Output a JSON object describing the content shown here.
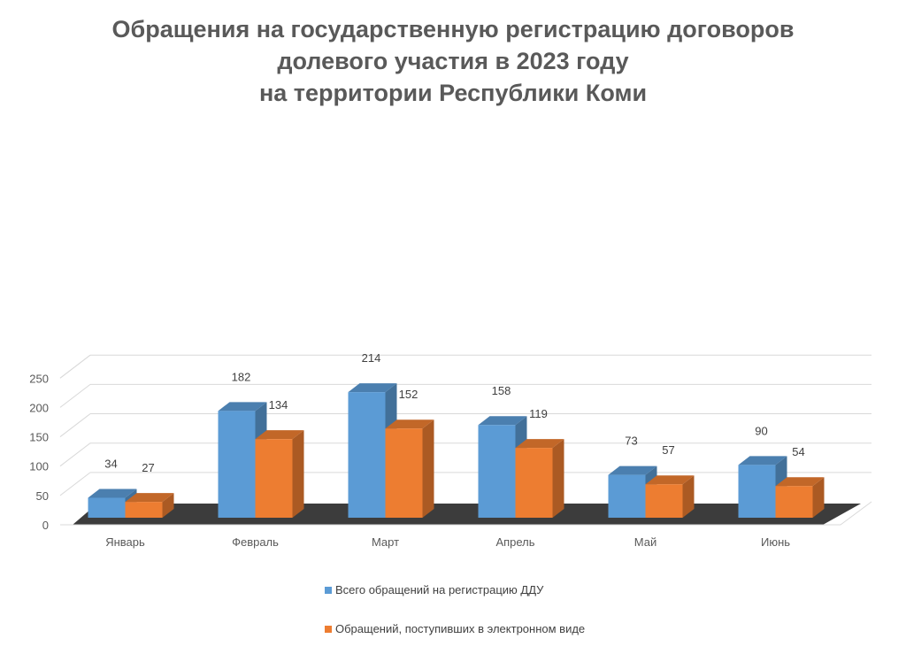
{
  "chart_data": {
    "type": "bar",
    "title_lines": [
      "Обращения на государственную регистрацию договоров",
      "долевого участия в 2023 году",
      "на территории Республики Коми"
    ],
    "categories": [
      "Январь",
      "Февраль",
      "Март",
      "Апрель",
      "Май",
      "Июнь"
    ],
    "series": [
      {
        "name": "Всего обращений на регистрацию ДДУ",
        "values": [
          34,
          182,
          214,
          158,
          73,
          90
        ],
        "color": "#5B9BD5"
      },
      {
        "name": "Обращений, поступивших в электронном виде",
        "values": [
          27,
          134,
          152,
          119,
          57,
          54
        ],
        "color": "#ED7D31"
      }
    ],
    "y_ticks": [
      "0",
      "50",
      "100",
      "150",
      "200",
      "250"
    ],
    "ylim": [
      0,
      250
    ],
    "grid": true,
    "three_d": true,
    "legend_position": "bottom",
    "data_labels": true
  }
}
